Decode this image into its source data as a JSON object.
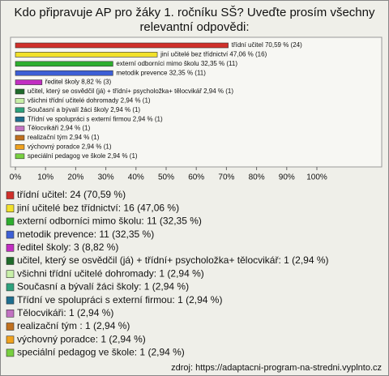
{
  "chart_data": {
    "type": "bar",
    "orientation": "horizontal",
    "title": "Kdo připravuje AP pro žáky 1. ročníku SŠ? Uveďte prosím všechny relevantní odpovědi:",
    "categories": [
      "třídní učitel",
      "jiní učitelé bez třídnictví",
      "externí odborníci mimo školu",
      "metodik prevence",
      "ředitel školy",
      "učitel, který se osvědčil (já) + třídní+ psycholožka+ tělocvikář",
      "všichni třídní učitelé dohromady",
      "Současní a bývalí žáci školy",
      "Třídní ve spolupráci s externí firmou",
      "Tělocvikáři",
      "realizační tým",
      "výchovný poradce",
      "speciální pedagog ve škole"
    ],
    "values": [
      70.59,
      47.06,
      32.35,
      32.35,
      8.82,
      2.94,
      2.94,
      2.94,
      2.94,
      2.94,
      2.94,
      2.94,
      2.94
    ],
    "value_labels": [
      "třídní učitel 70,59 % (24)",
      "jiní učitelé bez třídnictví 47,06 % (16)",
      "externí odborníci mimo školu 32,35 % (11)",
      "metodik prevence 32,35 % (11)",
      "ředitel školy 8,82 % (3)",
      "učitel, který se osvědčil (já) + třídní+ psycholožka+ tělocvikář 2,94 % (1)",
      "všichni třídní učitelé dohromady 2,94 % (1)",
      "Současní a bývalí žáci školy 2,94 % (1)",
      "Třídní ve spolupráci s externí firmou 2,94 % (1)",
      "Tělocvikáři 2,94 % (1)",
      "realizační tým  2,94 % (1)",
      "výchovný poradce 2,94 % (1)",
      "speciální pedagog ve škole 2,94 % (1)"
    ],
    "legend_labels": [
      "třídní učitel: 24 (70,59 %)",
      "jiní učitelé bez třídnictví: 16 (47,06 %)",
      "externí odborníci mimo školu: 11 (32,35 %)",
      "metodik prevence: 11 (32,35 %)",
      "ředitel školy: 3 (8,82 %)",
      "učitel, který se osvědčil (já) + třídní+ psycholožka+ tělocvikář: 1 (2,94 %)",
      "všichni třídní učitelé dohromady: 1 (2,94 %)",
      "Současní a bývalí žáci školy: 1 (2,94 %)",
      "Třídní ve spolupráci s externí firmou: 1 (2,94 %)",
      "Tělocvikáři: 1 (2,94 %)",
      "realizační tým : 1 (2,94 %)",
      "výchovný poradce: 1 (2,94 %)",
      "speciální pedagog ve škole: 1 (2,94 %)"
    ],
    "colors": [
      "#d0302a",
      "#f2e12a",
      "#2eae2e",
      "#3d5fd6",
      "#c22ec2",
      "#1f6b2a",
      "#c8f0a8",
      "#2ea27c",
      "#1f6f8f",
      "#c272c2",
      "#c0701e",
      "#f0a21e",
      "#78d040"
    ],
    "xlim": [
      0,
      100
    ],
    "xticks": [
      {
        "value": 0,
        "label": "0%"
      },
      {
        "value": 10,
        "label": "10%"
      },
      {
        "value": 20,
        "label": "20%"
      },
      {
        "value": 30,
        "label": "30%"
      },
      {
        "value": 40,
        "label": "40%"
      },
      {
        "value": 50,
        "label": "50%"
      },
      {
        "value": 60,
        "label": "60%"
      },
      {
        "value": 70,
        "label": "70%"
      },
      {
        "value": 80,
        "label": "80%"
      },
      {
        "value": 90,
        "label": "90%"
      },
      {
        "value": 100,
        "label": "100%"
      }
    ],
    "source": "zdroj: https://adaptacni-program-na-stredni.vyplnto.cz"
  }
}
